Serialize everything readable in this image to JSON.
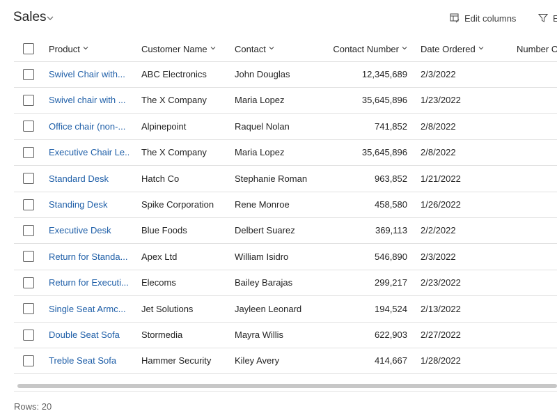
{
  "header": {
    "title": "Sales",
    "edit_columns_label": "Edit columns",
    "filter_label": "E",
    "icons": {
      "title_dropdown": "chevron-down-icon",
      "edit_columns": "edit-columns-icon",
      "filter": "filter-icon"
    }
  },
  "table": {
    "columns": [
      "Product",
      "Customer Name",
      "Contact",
      "Contact Number",
      "Date Ordered",
      "Number O"
    ],
    "rows": [
      [
        "Swivel Chair with...",
        "ABC Electronics",
        "John Douglas",
        "12,345,689",
        "2/3/2022"
      ],
      [
        "Swivel chair with ...",
        "The X Company",
        "Maria Lopez",
        "35,645,896",
        "1/23/2022"
      ],
      [
        "Office chair (non-...",
        "Alpinepoint",
        "Raquel Nolan",
        "741,852",
        "2/8/2022"
      ],
      [
        "Executive Chair Le...",
        "The X Company",
        "Maria Lopez",
        "35,645,896",
        "2/8/2022"
      ],
      [
        "Standard Desk",
        "Hatch Co",
        "Stephanie Roman",
        "963,852",
        "1/21/2022"
      ],
      [
        "Standing Desk",
        "Spike Corporation",
        "Rene Monroe",
        "458,580",
        "1/26/2022"
      ],
      [
        "Executive Desk",
        "Blue Foods",
        "Delbert Suarez",
        "369,113",
        "2/2/2022"
      ],
      [
        "Return for Standa...",
        "Apex Ltd",
        "William Isidro",
        "546,890",
        "2/3/2022"
      ],
      [
        "Return for Executi...",
        "Elecoms",
        "Bailey Barajas",
        "299,217",
        "2/23/2022"
      ],
      [
        "Single Seat Armc...",
        "Jet Solutions",
        "Jayleen Leonard",
        "194,524",
        "2/13/2022"
      ],
      [
        "Double Seat Sofa",
        "Stormedia",
        "Mayra Willis",
        "622,903",
        "2/27/2022"
      ],
      [
        "Treble Seat Sofa",
        "Hammer Security",
        "Kiley Avery",
        "414,667",
        "1/28/2022"
      ]
    ]
  },
  "footer": {
    "rows_label": "Rows: 20"
  },
  "colors": {
    "link": "#1f5fa8",
    "border": "#e1e1e1",
    "scrollbar": "#c7c7c7"
  }
}
